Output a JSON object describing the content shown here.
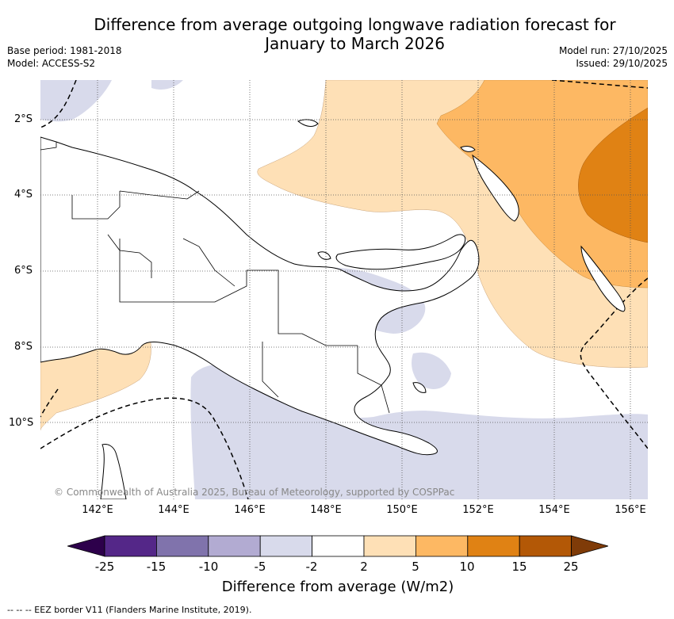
{
  "title_line1": "Difference from average outgoing longwave radiation forecast for",
  "title_line2": "January to March 2026",
  "base_period": "Base period: 1981-2018",
  "model": "Model: ACCESS-S2",
  "model_run": "Model run: 27/10/2025",
  "issued": "Issued: 29/10/2025",
  "lat_labels": [
    "2°S",
    "4°S",
    "6°S",
    "8°S",
    "10°S"
  ],
  "lon_labels": [
    "142°E",
    "144°E",
    "146°E",
    "148°E",
    "150°E",
    "152°E",
    "154°E",
    "156°E"
  ],
  "copyright": "© Commonwealth of Australia 2025, Bureau of Meteorology, supported by COSPPac",
  "colorbar": {
    "labels": [
      "-25",
      "-15",
      "-10",
      "-5",
      "-2",
      "2",
      "5",
      "10",
      "15",
      "25"
    ],
    "colors": [
      "#2d004b",
      "#542788",
      "#8073ac",
      "#b2abd2",
      "#d8daeb",
      "#ffffff",
      "#fee0b6",
      "#fdb863",
      "#e08214",
      "#b35806",
      "#7f3b08"
    ],
    "title": "Difference from average (W/m2)"
  },
  "footnote": "-- -- -- EEZ border V11 (Flanders Marine Institute, 2019)."
}
